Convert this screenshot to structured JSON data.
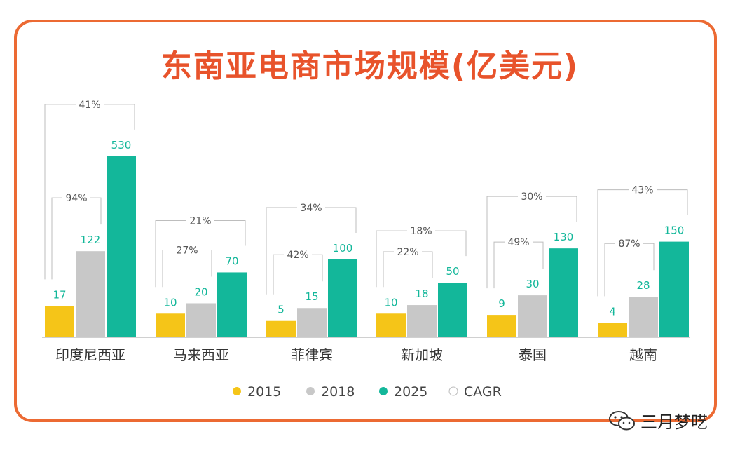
{
  "chart_data": {
    "type": "bar",
    "title": "东南亚电商市场规模(亿美元)",
    "categories": [
      "印度尼西亚",
      "马来西亚",
      "菲律宾",
      "新加坡",
      "泰国",
      "越南"
    ],
    "series": [
      {
        "name": "2015",
        "color": "#f5c518",
        "values": [
          17,
          10,
          5,
          10,
          9,
          4
        ]
      },
      {
        "name": "2018",
        "color": "#c8c8c8",
        "values": [
          122,
          20,
          15,
          18,
          30,
          28
        ]
      },
      {
        "name": "2025",
        "color": "#13b79a",
        "values": [
          530,
          70,
          100,
          50,
          130,
          150
        ]
      }
    ],
    "cagr": {
      "name": "CAGR",
      "2015_2018": [
        "94%",
        "27%",
        "42%",
        "22%",
        "49%",
        "87%"
      ],
      "2015_2025": [
        "41%",
        "21%",
        "34%",
        "18%",
        "30%",
        "43%"
      ]
    },
    "legend_position": "bottom",
    "grid": false,
    "colors": {
      "frame": "#ec6a33",
      "title": "#e8532b",
      "bracket": "#bdbdbd",
      "value_label": "#13b79a"
    }
  },
  "watermark": {
    "text": "三月梦呓",
    "icon": "wechat-icon"
  }
}
